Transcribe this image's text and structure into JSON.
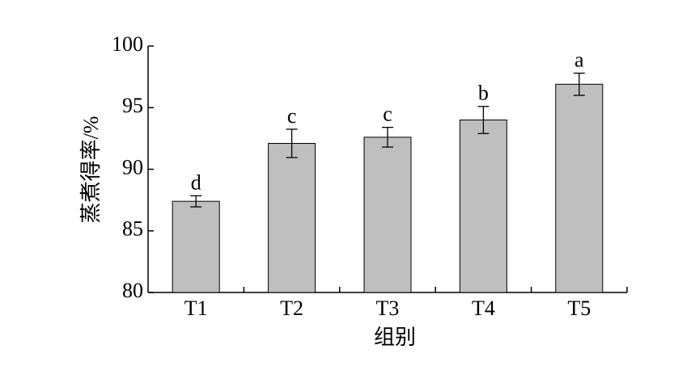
{
  "chart_data": {
    "type": "bar",
    "categories": [
      "T1",
      "T2",
      "T3",
      "T4",
      "T5"
    ],
    "values": [
      87.4,
      92.1,
      92.6,
      94.0,
      96.9
    ],
    "errors": [
      0.45,
      1.15,
      0.8,
      1.1,
      0.9
    ],
    "letters": [
      "d",
      "c",
      "c",
      "b",
      "a"
    ],
    "color": "#bfbfbf",
    "xlabel": "组别",
    "ylabel": "蒸煮得率/%",
    "ylim": [
      80,
      100
    ],
    "yticks": [
      80,
      85,
      90,
      95,
      100
    ],
    "grid": false
  }
}
